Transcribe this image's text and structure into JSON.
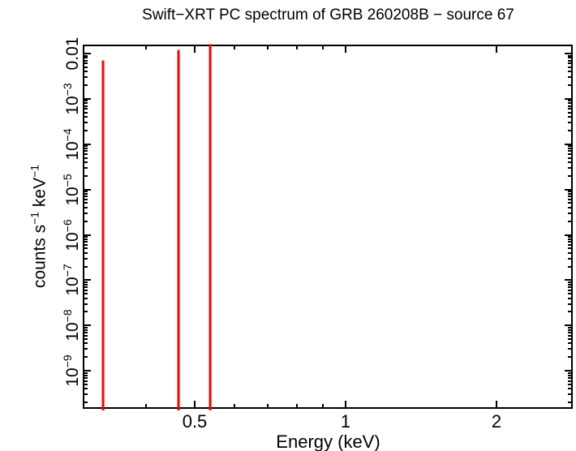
{
  "chart_data": {
    "type": "scatter",
    "title": "Swift−XRT PC spectrum of GRB 260208B − source 67",
    "xlabel": "Energy (keV)",
    "ylabel": "counts s−1 keV−1",
    "ylabel_parts": [
      {
        "t": "counts s"
      },
      {
        "t": "−1",
        "sup": true
      },
      {
        "t": " keV"
      },
      {
        "t": "−1",
        "sup": true
      }
    ],
    "x_scale": "log",
    "y_scale": "log",
    "x_range_keV": [
      0.3005,
      2.826
    ],
    "y_range": [
      1.51e-10,
      0.0151
    ],
    "x_major_ticks": [
      {
        "value": 0.5,
        "label": "0.5"
      },
      {
        "value": 1,
        "label": "1"
      },
      {
        "value": 2,
        "label": "2"
      }
    ],
    "x_minor_ticks": [
      0.4,
      0.6,
      0.7,
      0.8,
      0.9
    ],
    "y_major_ticks": [
      {
        "value": 0.01,
        "plain": "0.01"
      },
      {
        "value": 0.001,
        "base": "10",
        "exp": "−3"
      },
      {
        "value": 0.0001,
        "base": "10",
        "exp": "−4"
      },
      {
        "value": 1e-05,
        "base": "10",
        "exp": "−5"
      },
      {
        "value": 1e-06,
        "base": "10",
        "exp": "−6"
      },
      {
        "value": 1e-07,
        "base": "10",
        "exp": "−7"
      },
      {
        "value": 1e-08,
        "base": "10",
        "exp": "−8"
      },
      {
        "value": 1e-09,
        "base": "10",
        "exp": "−9"
      }
    ],
    "grid": false,
    "legend": false,
    "frame_color": "#000000",
    "series": [
      {
        "name": "PC spectrum error bars",
        "color": "#ff0000",
        "style": "vertical error bars extending below axis bottom",
        "points": [
          {
            "energy_keV": 0.329,
            "upper": 0.007
          },
          {
            "energy_keV": 0.464,
            "upper": 0.012
          },
          {
            "energy_keV": 0.537,
            "upper": 0.0161
          }
        ]
      }
    ]
  }
}
